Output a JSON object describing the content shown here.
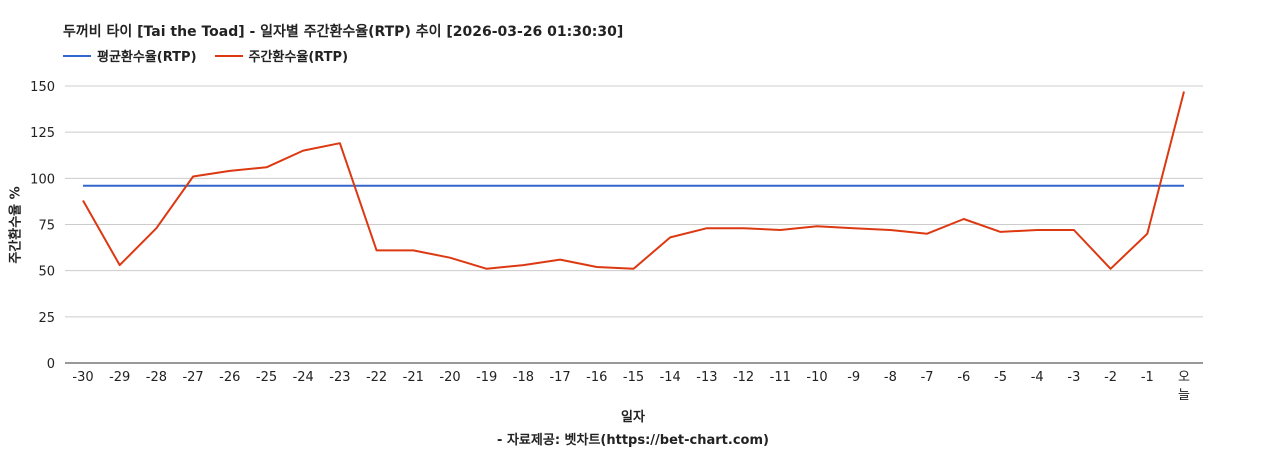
{
  "chart_data": {
    "type": "line",
    "title": "두꺼비 타이 [Tai the Toad] - 일자별 주간환수율(RTP) 추이 [2026-03-26 01:30:30]",
    "xlabel": "일자",
    "ylabel": "주간환수율 %",
    "source_note": "- 자료제공: 벳차트(https://bet-chart.com)",
    "ylim": [
      0,
      150
    ],
    "yticks": [
      "0",
      "25",
      "50",
      "75",
      "100",
      "125",
      "150"
    ],
    "grid": true,
    "legend_position": "top-left",
    "categories": [
      "-30",
      "-29",
      "-28",
      "-27",
      "-26",
      "-25",
      "-24",
      "-23",
      "-22",
      "-21",
      "-20",
      "-19",
      "-18",
      "-17",
      "-16",
      "-15",
      "-14",
      "-13",
      "-12",
      "-11",
      "-10",
      "-9",
      "-8",
      "-7",
      "-6",
      "-5",
      "-4",
      "-3",
      "-2",
      "-1",
      "오늘"
    ],
    "series": [
      {
        "name": "평균환수율(RTP)",
        "color": "#3366cc",
        "values": [
          96,
          96,
          96,
          96,
          96,
          96,
          96,
          96,
          96,
          96,
          96,
          96,
          96,
          96,
          96,
          96,
          96,
          96,
          96,
          96,
          96,
          96,
          96,
          96,
          96,
          96,
          96,
          96,
          96,
          96,
          96
        ]
      },
      {
        "name": "주간환수율(RTP)",
        "color": "#dc3912",
        "values": [
          88,
          53,
          73,
          101,
          104,
          106,
          115,
          119,
          61,
          61,
          57,
          51,
          53,
          56,
          52,
          51,
          68,
          73,
          73,
          72,
          74,
          73,
          72,
          70,
          78,
          71,
          72,
          72,
          51,
          70,
          147
        ]
      }
    ]
  }
}
